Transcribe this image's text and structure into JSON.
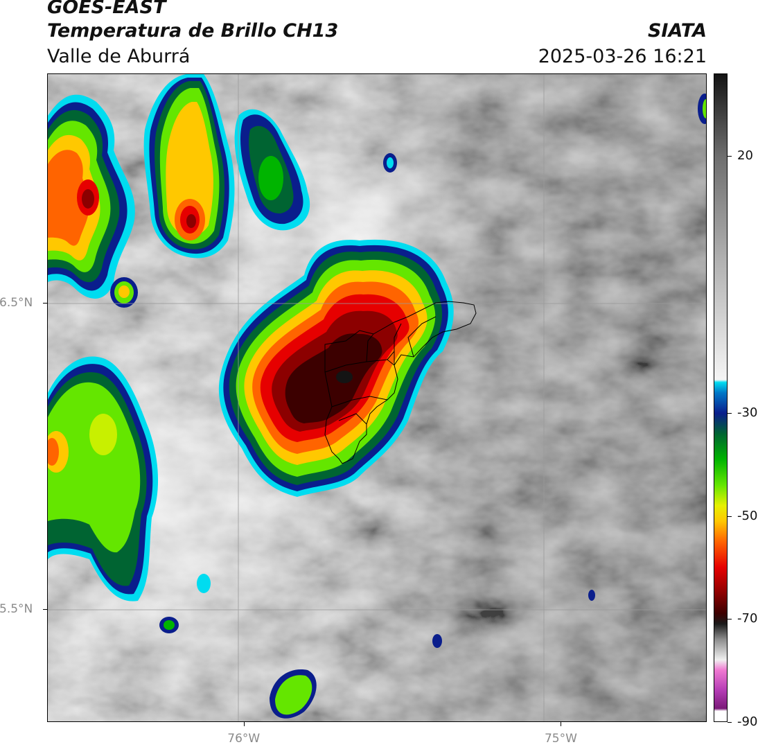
{
  "title": {
    "satellite": "GOES-EAST",
    "product": "Temperatura de Brillo CH13",
    "region": "Valle de Aburrá",
    "agency": "SIATA",
    "datetime": "2025-03-26 16:21"
  },
  "axes": {
    "y_ticks": [
      {
        "label": "6.5°N",
        "value": 6.5
      },
      {
        "label": "5.5°N",
        "value": 5.5
      }
    ],
    "x_ticks": [
      {
        "label": "76°W",
        "value": -76
      },
      {
        "label": "75°W",
        "value": -75
      }
    ]
  },
  "colorbar": {
    "range": [
      -90,
      36
    ],
    "labels": [
      {
        "label": "20",
        "value": 20
      },
      {
        "label": "-30",
        "value": -30
      },
      {
        "label": "-50",
        "value": -50
      },
      {
        "label": "-70",
        "value": -70
      },
      {
        "label": "-90",
        "value": -90
      }
    ],
    "stops": [
      {
        "t": -90,
        "color": "#ffffff"
      },
      {
        "t": -88,
        "color": "#ffffff"
      },
      {
        "t": -87.5,
        "color": "#7a1a78"
      },
      {
        "t": -84,
        "color": "#b43cb4"
      },
      {
        "t": -80,
        "color": "#f07ad2"
      },
      {
        "t": -78,
        "color": "#f0f0f0"
      },
      {
        "t": -74,
        "color": "#8c8c8c"
      },
      {
        "t": -71,
        "color": "#1a1a1a"
      },
      {
        "t": -69,
        "color": "#3c0000"
      },
      {
        "t": -65,
        "color": "#8c0000"
      },
      {
        "t": -60,
        "color": "#e60000"
      },
      {
        "t": -55,
        "color": "#ff6400"
      },
      {
        "t": -51,
        "color": "#ffc800"
      },
      {
        "t": -48,
        "color": "#e6f000"
      },
      {
        "t": -44,
        "color": "#64e600"
      },
      {
        "t": -39,
        "color": "#00b400"
      },
      {
        "t": -34,
        "color": "#006432"
      },
      {
        "t": -30,
        "color": "#0a1e8c"
      },
      {
        "t": -26,
        "color": "#0078c8"
      },
      {
        "t": -24,
        "color": "#00dcf0"
      },
      {
        "t": -23.5,
        "color": "#f5f5f5"
      },
      {
        "t": 0,
        "color": "#b0b0b0"
      },
      {
        "t": 20,
        "color": "#6e6e6e"
      },
      {
        "t": 36,
        "color": "#141414"
      }
    ]
  },
  "map": {
    "lon_range": [
      -76.62,
      -74.54
    ],
    "lat_range": [
      5.13,
      7.25
    ],
    "features": [
      {
        "name": "main-storm-cell",
        "lon": -75.5,
        "lat": 6.25,
        "min_temp_c": -68
      },
      {
        "name": "northwest-cell",
        "lon": -76.33,
        "lat": 6.82,
        "min_temp_c": -60
      },
      {
        "name": "north-cell",
        "lon": -76.15,
        "lat": 6.85,
        "min_temp_c": -62
      },
      {
        "name": "west-cell",
        "lon": -76.52,
        "lat": 6.0,
        "min_temp_c": -45
      }
    ]
  }
}
